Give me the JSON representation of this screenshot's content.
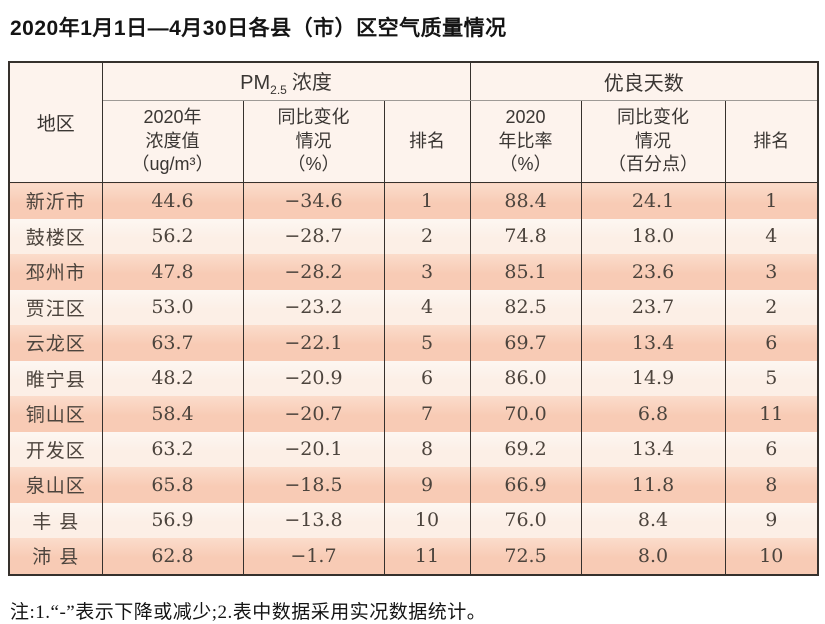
{
  "page": {
    "title": "2020年1月1日—4月30日各县（市）区空气质量情况",
    "note": "注:1.“-”表示下降或减少;2.表中数据采用实况数据统计。"
  },
  "table": {
    "region_header": "地区",
    "pm25_section": {
      "prefix": "PM",
      "sub": "2.5",
      "suffix": "浓度"
    },
    "good_days_section": "优良天数",
    "columns": {
      "pm_value_lines": [
        "2020年",
        "浓度值",
        "（ug/m³）"
      ],
      "pm_change_lines": [
        "同比变化",
        "情况",
        "（%）"
      ],
      "pm_rank": "排名",
      "good_rate_lines": [
        "2020",
        "年比率",
        "（%）"
      ],
      "good_change_lines": [
        "同比变化",
        "情况",
        "（百分点）"
      ],
      "good_rank": "排名"
    },
    "rows": [
      {
        "region": "新沂市",
        "pm_value": "44.6",
        "pm_change": "−34.6",
        "pm_rank": "1",
        "good_rate": "88.4",
        "good_change": "24.1",
        "good_rank": "1"
      },
      {
        "region": "鼓楼区",
        "pm_value": "56.2",
        "pm_change": "−28.7",
        "pm_rank": "2",
        "good_rate": "74.8",
        "good_change": "18.0",
        "good_rank": "4"
      },
      {
        "region": "邳州市",
        "pm_value": "47.8",
        "pm_change": "−28.2",
        "pm_rank": "3",
        "good_rate": "85.1",
        "good_change": "23.6",
        "good_rank": "3"
      },
      {
        "region": "贾汪区",
        "pm_value": "53.0",
        "pm_change": "−23.2",
        "pm_rank": "4",
        "good_rate": "82.5",
        "good_change": "23.7",
        "good_rank": "2"
      },
      {
        "region": "云龙区",
        "pm_value": "63.7",
        "pm_change": "−22.1",
        "pm_rank": "5",
        "good_rate": "69.7",
        "good_change": "13.4",
        "good_rank": "6"
      },
      {
        "region": "睢宁县",
        "pm_value": "48.2",
        "pm_change": "−20.9",
        "pm_rank": "6",
        "good_rate": "86.0",
        "good_change": "14.9",
        "good_rank": "5"
      },
      {
        "region": "铜山区",
        "pm_value": "58.4",
        "pm_change": "−20.7",
        "pm_rank": "7",
        "good_rate": "70.0",
        "good_change": "6.8",
        "good_rank": "11"
      },
      {
        "region": "开发区",
        "pm_value": "63.2",
        "pm_change": "−20.1",
        "pm_rank": "8",
        "good_rate": "69.2",
        "good_change": "13.4",
        "good_rank": "6"
      },
      {
        "region": "泉山区",
        "pm_value": "65.8",
        "pm_change": "−18.5",
        "pm_rank": "9",
        "good_rate": "66.9",
        "good_change": "11.8",
        "good_rank": "8"
      },
      {
        "region": "丰 县",
        "pm_value": "56.9",
        "pm_change": "−13.8",
        "pm_rank": "10",
        "good_rate": "76.0",
        "good_change": "8.4",
        "good_rank": "9"
      },
      {
        "region": "沛 县",
        "pm_value": "62.8",
        "pm_change": "−1.7",
        "pm_rank": "11",
        "good_rate": "72.5",
        "good_change": "8.0",
        "good_rank": "10"
      }
    ]
  },
  "colors": {
    "row_odd": "#f8cbb5",
    "row_even": "#fcefe6",
    "header_bg": "#fdf3ed",
    "border_dark": "#36312d",
    "border_gray": "#9e9a96",
    "data_text": "#4c443d"
  }
}
